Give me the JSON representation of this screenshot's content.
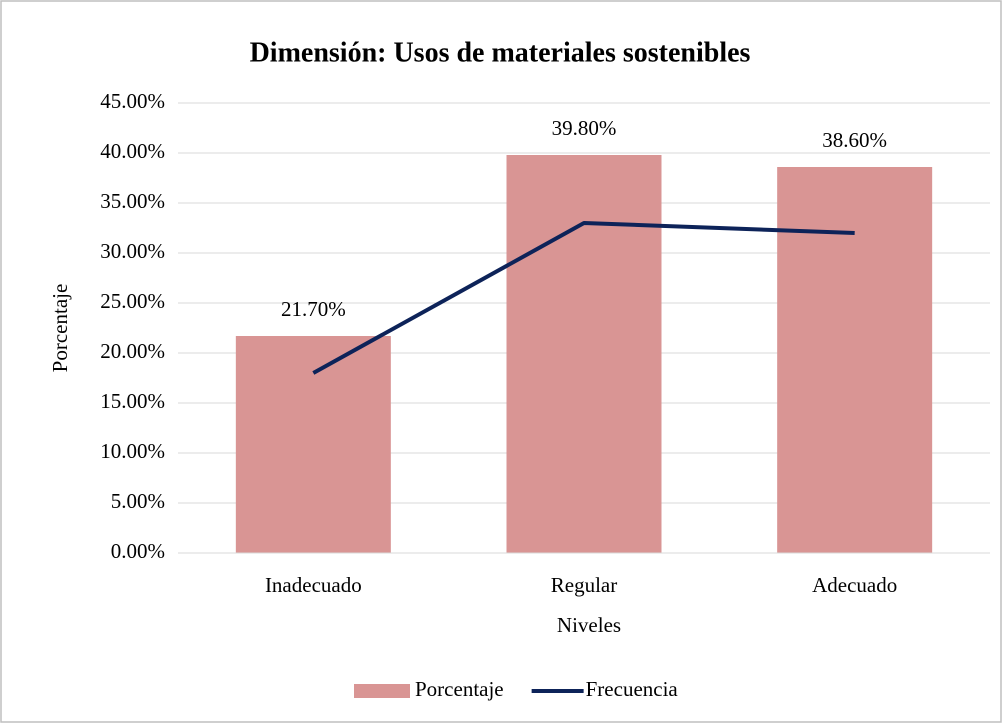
{
  "chart_data": {
    "type": "bar",
    "title": "Dimensión: Usos de materiales sostenibles",
    "x_label": "Niveles",
    "y_label": "Porcentaje",
    "categories": [
      "Inadecuado",
      "Regular",
      "Adecuado"
    ],
    "series": [
      {
        "name": "Porcentaje",
        "type": "bar",
        "color": "#d99594",
        "values": [
          21.7,
          39.8,
          38.6
        ],
        "value_labels": [
          "21.70%",
          "39.80%",
          "38.60%"
        ]
      },
      {
        "name": "Frecuencia",
        "type": "line",
        "color": "#0d2359",
        "values": [
          18,
          33,
          32
        ]
      }
    ],
    "ylim": [
      0,
      45
    ],
    "yticks": [
      {
        "value": 0,
        "label": "0.00%"
      },
      {
        "value": 5,
        "label": "5.00%"
      },
      {
        "value": 10,
        "label": "10.00%"
      },
      {
        "value": 15,
        "label": "15.00%"
      },
      {
        "value": 20,
        "label": "20.00%"
      },
      {
        "value": 25,
        "label": "25.00%"
      },
      {
        "value": 30,
        "label": "30.00%"
      },
      {
        "value": 35,
        "label": "35.00%"
      },
      {
        "value": 40,
        "label": "40.00%"
      },
      {
        "value": 45,
        "label": "45.00%"
      }
    ],
    "grid": true,
    "legend": "bottom"
  }
}
